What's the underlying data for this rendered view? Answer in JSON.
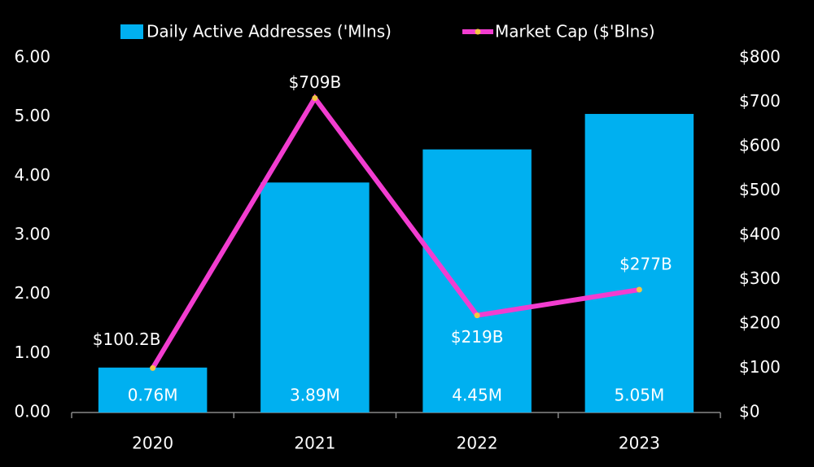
{
  "chart_data": {
    "type": "bar",
    "categories": [
      "2020",
      "2021",
      "2022",
      "2023"
    ],
    "series": [
      {
        "name": "Daily Active Addresses ('Mlns)",
        "type": "bar",
        "color": "#00b0f0",
        "values": [
          0.76,
          3.89,
          4.45,
          5.05
        ],
        "value_labels": [
          "0.76M",
          "3.89M",
          "4.45M",
          "5.05M"
        ]
      },
      {
        "name": "Market Cap ($'Blns)",
        "type": "line",
        "axis": "y2",
        "color": "#f23dd0",
        "marker_color": "#f5c542",
        "values": [
          100.2,
          709,
          219,
          277
        ],
        "value_labels": [
          "$100.2B",
          "$709B",
          "$219B",
          "$277B"
        ]
      }
    ],
    "ylim": [
      0,
      6
    ],
    "yticks": [
      {
        "value": 0,
        "label": "0.00"
      },
      {
        "value": 1,
        "label": "1.00"
      },
      {
        "value": 2,
        "label": "2.00"
      },
      {
        "value": 3,
        "label": "3.00"
      },
      {
        "value": 4,
        "label": "4.00"
      },
      {
        "value": 5,
        "label": "5.00"
      },
      {
        "value": 6,
        "label": "6.00"
      }
    ],
    "y2lim": [
      0,
      800
    ],
    "y2ticks": [
      {
        "value": 0,
        "label": "$0"
      },
      {
        "value": 100,
        "label": "$100"
      },
      {
        "value": 200,
        "label": "$200"
      },
      {
        "value": 300,
        "label": "$300"
      },
      {
        "value": 400,
        "label": "$400"
      },
      {
        "value": 500,
        "label": "$500"
      },
      {
        "value": 600,
        "label": "$600"
      },
      {
        "value": 700,
        "label": "$700"
      },
      {
        "value": 800,
        "label": "$800"
      }
    ],
    "legend": "top"
  }
}
